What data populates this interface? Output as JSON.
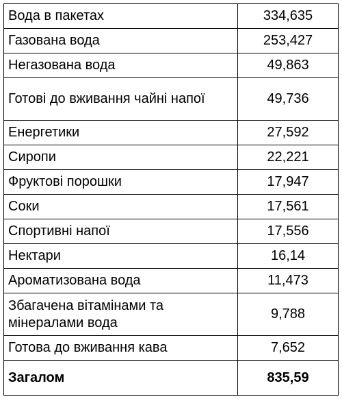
{
  "table": {
    "rows": [
      {
        "label": "Вода в пакетах",
        "value": "334,635"
      },
      {
        "label": "Газована вода",
        "value": "253,427"
      },
      {
        "label": "Негазована вода",
        "value": "49,863"
      },
      {
        "label": "Готові до вживання чайні напої",
        "value": "49,736"
      },
      {
        "label": "Енергетики",
        "value": "27,592"
      },
      {
        "label": "Сиропи",
        "value": "22,221"
      },
      {
        "label": "Фруктові порошки",
        "value": "17,947"
      },
      {
        "label": "Соки",
        "value": "17,561"
      },
      {
        "label": "Спортивні напої",
        "value": "17,556"
      },
      {
        "label": "Нектари",
        "value": "16,14"
      },
      {
        "label": "Ароматизована вода",
        "value": "11,473"
      },
      {
        "label": "Збагачена вітамінами та мінералами вода",
        "value": "9,788"
      },
      {
        "label": "Готова до вживання кава",
        "value": "7,652"
      }
    ],
    "total": {
      "label": "Загалом",
      "value": "835,59"
    }
  }
}
